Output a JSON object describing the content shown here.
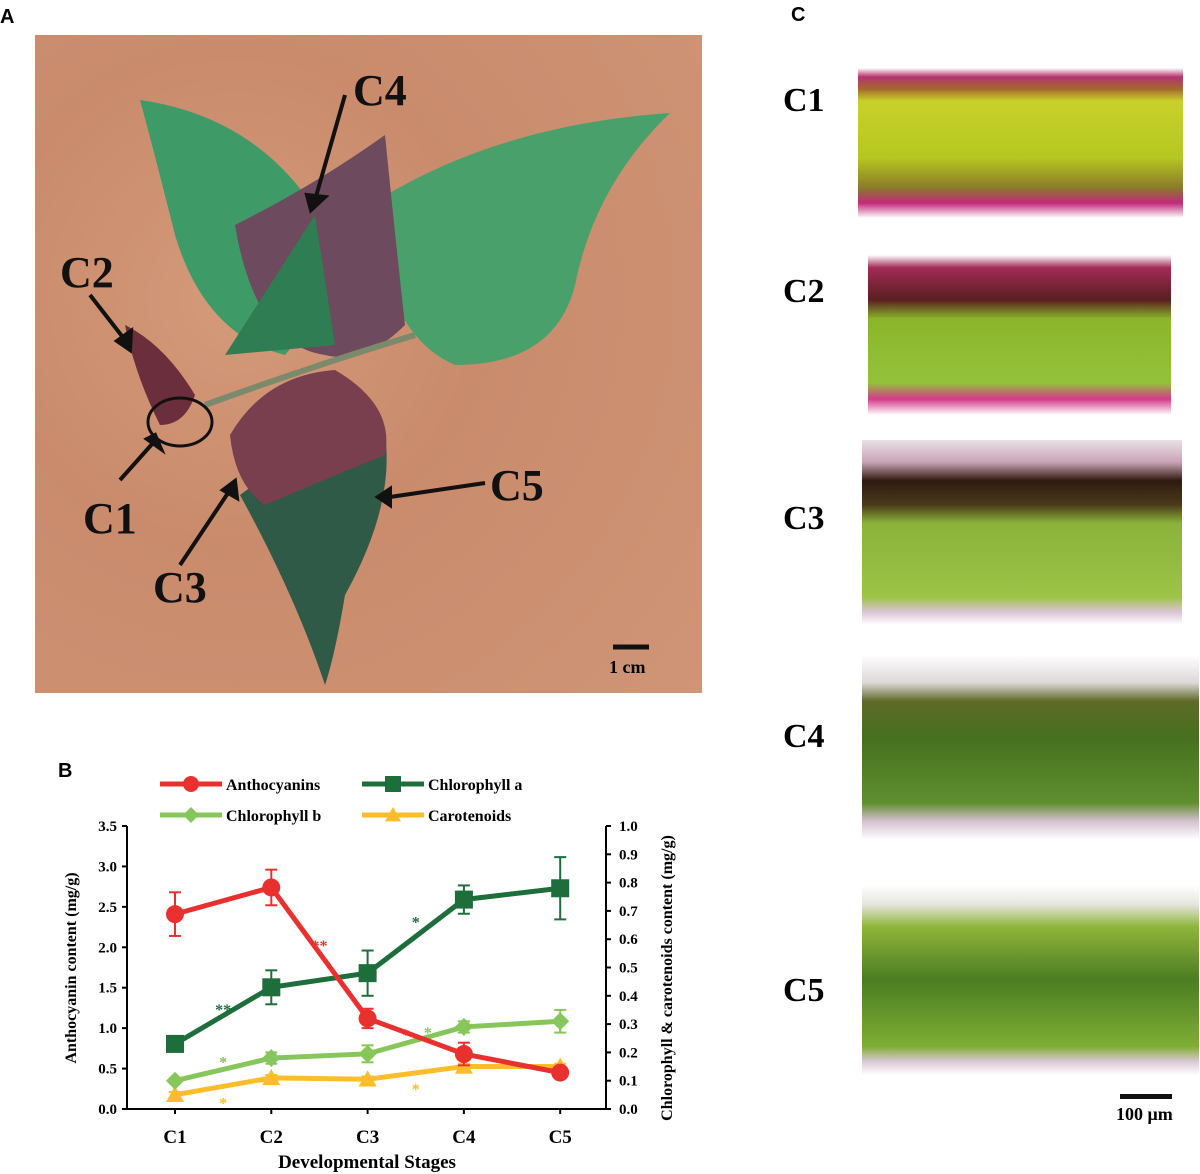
{
  "panels": {
    "a": "A",
    "b": "B",
    "c": "C"
  },
  "photo": {
    "labels": [
      "C1",
      "C2",
      "C3",
      "C4",
      "C5"
    ],
    "scale_bar": "1 cm"
  },
  "micrographs": {
    "labels": [
      "C1",
      "C2",
      "C3",
      "C4",
      "C5"
    ],
    "scale_bar": "100 μm"
  },
  "chart_data": {
    "type": "line",
    "categories": [
      "C1",
      "C2",
      "C3",
      "C4",
      "C5"
    ],
    "xlabel": "Developmental Stages",
    "ylabel": "Anthocyanin content (mg/g)",
    "y2label": "Chlorophyll  & carotenoids content (mg/g)",
    "ylim": [
      0,
      3.5
    ],
    "y2lim": [
      0,
      1.0
    ],
    "yticks": [
      "0.0",
      "0.5",
      "1.0",
      "1.5",
      "2.0",
      "2.5",
      "3.0",
      "3.5"
    ],
    "y2ticks": [
      "0.0",
      "0.1",
      "0.2",
      "0.3",
      "0.4",
      "0.5",
      "0.6",
      "0.7",
      "0.8",
      "0.9",
      "1.0"
    ],
    "legend_position": "top",
    "series": [
      {
        "name": "Anthocyanins",
        "axis": "left",
        "color": "#e8312f",
        "marker": "circle",
        "values": [
          2.41,
          2.74,
          1.12,
          0.68,
          0.45
        ],
        "errors": [
          0.27,
          0.22,
          0.12,
          0.14,
          0.03
        ]
      },
      {
        "name": "Chlorophyll a",
        "axis": "right",
        "color": "#1d6e3a",
        "marker": "square",
        "values": [
          0.23,
          0.43,
          0.48,
          0.74,
          0.78
        ],
        "errors": [
          0.01,
          0.06,
          0.08,
          0.05,
          0.11
        ]
      },
      {
        "name": "Chlorophyll b",
        "axis": "right",
        "color": "#86c65a",
        "marker": "diamond",
        "values": [
          0.1,
          0.18,
          0.195,
          0.29,
          0.31
        ],
        "errors": [
          0.01,
          0.02,
          0.03,
          0.02,
          0.04
        ]
      },
      {
        "name": "Carotenoids",
        "axis": "right",
        "color": "#fbbd2a",
        "marker": "triangle",
        "values": [
          0.05,
          0.11,
          0.105,
          0.15,
          0.15
        ],
        "errors": [
          0.01,
          0.01,
          0.01,
          0.01,
          0.01
        ]
      }
    ],
    "annotations": [
      {
        "text": "**",
        "series": "Anthocyanins",
        "between": [
          "C2",
          "C3"
        ],
        "value": 2.05
      },
      {
        "text": "*",
        "series": "Anthocyanins",
        "between": [
          "C3",
          "C4"
        ],
        "value": 0.95
      },
      {
        "text": "**",
        "series": "Chlorophyll a",
        "between": [
          "C1",
          "C2"
        ],
        "value": 0.36
      },
      {
        "text": "*",
        "series": "Chlorophyll a",
        "between": [
          "C3",
          "C4"
        ],
        "value": 0.67
      },
      {
        "text": "*",
        "series": "Chlorophyll b",
        "between": [
          "C1",
          "C2"
        ],
        "value": 0.175
      },
      {
        "text": "*",
        "series": "Chlorophyll b",
        "between": [
          "C3",
          "C4"
        ],
        "value": 0.28
      },
      {
        "text": "*",
        "series": "Carotenoids",
        "between": [
          "C1",
          "C2"
        ],
        "value": 0.03
      },
      {
        "text": "*",
        "series": "Carotenoids",
        "between": [
          "C3",
          "C4"
        ],
        "value": 0.08
      }
    ]
  }
}
